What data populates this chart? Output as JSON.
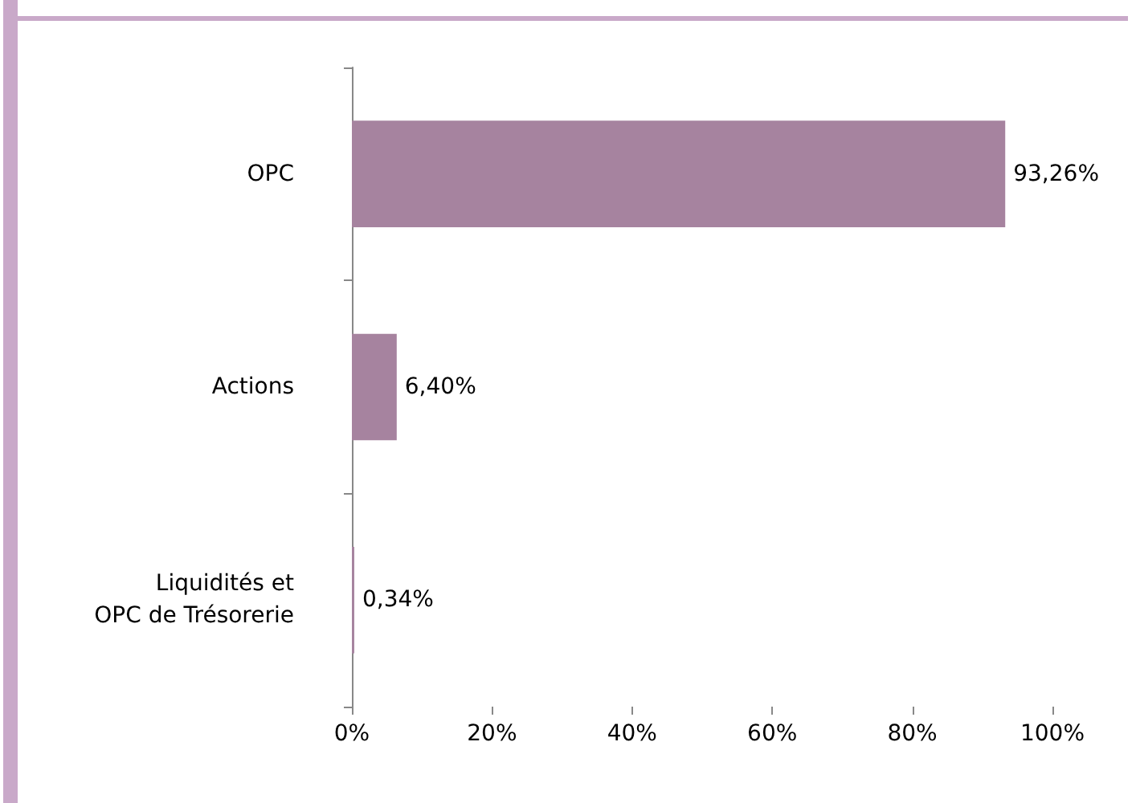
{
  "chart_data": {
    "type": "bar",
    "orientation": "horizontal",
    "categories": [
      "OPC",
      "Actions",
      "Liquidités et\nOPC de Trésorerie"
    ],
    "values": [
      93.26,
      6.4,
      0.34
    ],
    "color": "#a6839f",
    "value_labels": [
      "93,26%",
      "6,40%",
      "0,34%"
    ],
    "xlim": [
      0,
      100
    ],
    "xticks": [
      {
        "value": 0,
        "label": "0%"
      },
      {
        "value": 20,
        "label": "20%"
      },
      {
        "value": 40,
        "label": "40%"
      },
      {
        "value": 60,
        "label": "60%"
      },
      {
        "value": 80,
        "label": "80%"
      },
      {
        "value": 100,
        "label": "100%"
      }
    ],
    "grid": false
  }
}
